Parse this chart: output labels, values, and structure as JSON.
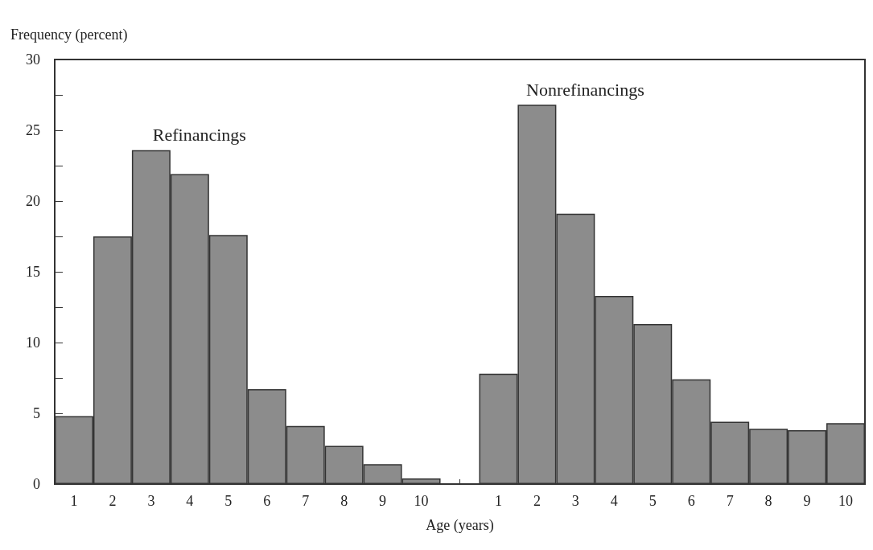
{
  "chart_data": {
    "type": "bar",
    "xlabel": "Age (years)",
    "ylabel": "Frequency (percent)",
    "categories": [
      "1",
      "2",
      "3",
      "4",
      "5",
      "6",
      "7",
      "8",
      "9",
      "10",
      null,
      "1",
      "2",
      "3",
      "4",
      "5",
      "6",
      "7",
      "8",
      "9",
      "10"
    ],
    "series": [
      {
        "name": "Refinancings",
        "color": "#8c8c8c",
        "values": [
          4.8,
          17.5,
          23.6,
          21.9,
          17.6,
          6.7,
          4.1,
          2.7,
          1.4,
          0.4,
          null,
          null,
          null,
          null,
          null,
          null,
          null,
          null,
          null,
          null,
          null
        ]
      },
      {
        "name": "Nonrefinancings",
        "color": "#8c8c8c",
        "values": [
          null,
          null,
          null,
          null,
          null,
          null,
          null,
          null,
          null,
          null,
          null,
          7.8,
          26.8,
          19.1,
          13.3,
          11.3,
          7.4,
          4.4,
          3.9,
          3.8,
          4.3
        ]
      }
    ],
    "ylim": [
      0,
      30
    ],
    "yticks": [
      0,
      {
        "value": 2.5,
        "label": null
      },
      5,
      {
        "value": 7.5,
        "label": null
      },
      10,
      {
        "value": 12.5,
        "label": null
      },
      15,
      {
        "value": 17.5,
        "label": null
      },
      20,
      {
        "value": 22.5,
        "label": null
      },
      25,
      {
        "value": 27.5,
        "label": null
      },
      30
    ],
    "grid": false,
    "legend": false
  }
}
